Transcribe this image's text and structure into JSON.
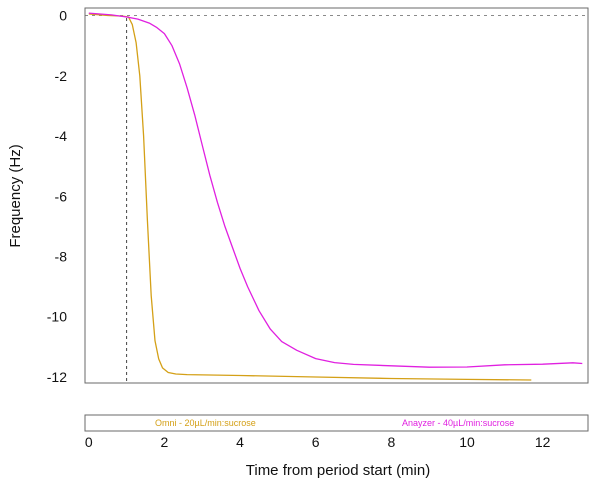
{
  "chart_data": {
    "type": "line",
    "title": "",
    "xlabel": "Time from period start (min)",
    "ylabel": "Frequency (Hz)",
    "xlim": [
      -0.1,
      13.2
    ],
    "ylim": [
      -12.2,
      0.25
    ],
    "x_ticks": [
      0,
      2,
      4,
      6,
      8,
      10,
      12
    ],
    "y_ticks": [
      0,
      -2,
      -4,
      -6,
      -8,
      -10,
      -12
    ],
    "x_tick_labels": [
      "0",
      "2",
      "4",
      "6",
      "8",
      "10",
      "12"
    ],
    "y_tick_labels": [
      "0",
      "-2",
      "-4",
      "-6",
      "-8",
      "-10",
      "-12"
    ],
    "zero_reference_line": 0,
    "event_marker_x": 1.0,
    "grid": false,
    "legend_position": "bottom strip",
    "series": [
      {
        "name": "Omni - 20µL/min:sucrose",
        "color": "#d4a017",
        "x": [
          0,
          0.5,
          0.9,
          1.05,
          1.15,
          1.25,
          1.35,
          1.45,
          1.55,
          1.65,
          1.75,
          1.85,
          1.95,
          2.1,
          2.3,
          2.6,
          3.0,
          4.0,
          6.0,
          8.0,
          10.0,
          11.7
        ],
        "y": [
          0.05,
          0.0,
          -0.02,
          -0.05,
          -0.3,
          -0.9,
          -2.0,
          -4.0,
          -6.8,
          -9.3,
          -10.8,
          -11.4,
          -11.7,
          -11.85,
          -11.9,
          -11.92,
          -11.93,
          -11.95,
          -12.0,
          -12.05,
          -12.08,
          -12.1
        ]
      },
      {
        "name": "Anayzer - 40µL/min:sucrose",
        "color": "#e020e0",
        "x": [
          0,
          0.6,
          1.0,
          1.3,
          1.6,
          1.8,
          2.0,
          2.2,
          2.4,
          2.6,
          2.8,
          3.0,
          3.2,
          3.4,
          3.6,
          3.8,
          4.0,
          4.2,
          4.5,
          4.8,
          5.1,
          5.5,
          6.0,
          6.5,
          7.0,
          8.0,
          9.0,
          10.0,
          11.0,
          12.0,
          12.8,
          13.05
        ],
        "y": [
          0.08,
          0.02,
          -0.05,
          -0.12,
          -0.25,
          -0.4,
          -0.6,
          -1.0,
          -1.6,
          -2.4,
          -3.3,
          -4.3,
          -5.3,
          -6.2,
          -7.0,
          -7.7,
          -8.4,
          -9.0,
          -9.8,
          -10.4,
          -10.8,
          -11.1,
          -11.4,
          -11.55,
          -11.6,
          -11.62,
          -11.65,
          -11.65,
          -11.6,
          -11.6,
          -11.55,
          -11.55
        ]
      }
    ]
  }
}
